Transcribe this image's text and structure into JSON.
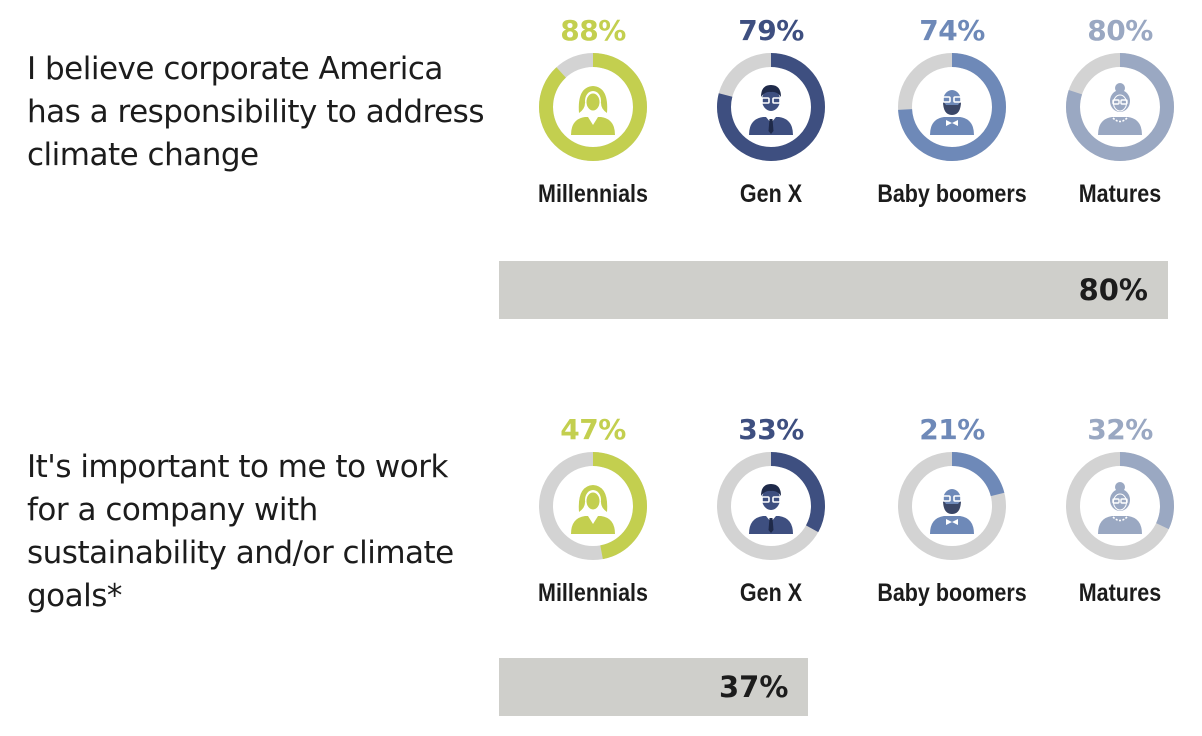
{
  "chart_data": [
    {
      "type": "donut",
      "question": "I believe corporate America has a responsibility to address climate change",
      "categories": [
        "Millennials",
        "Gen X",
        "Baby boomers",
        "Matures"
      ],
      "values": [
        88,
        79,
        74,
        80
      ],
      "value_labels": [
        "88%",
        "79%",
        "74%",
        "80%"
      ],
      "colors": [
        "#c3cf4f",
        "#3e4f80",
        "#6e89b8",
        "#9aa8c2"
      ],
      "icons": [
        "female-avatar-icon",
        "male-glasses-avatar-icon",
        "bearded-man-avatar-icon",
        "older-woman-avatar-icon"
      ],
      "total": {
        "value": 80,
        "label": "80%"
      }
    },
    {
      "type": "donut",
      "question": "It's important to me to work for a company with sustainability and/or climate goals*",
      "categories": [
        "Millennials",
        "Gen X",
        "Baby boomers",
        "Matures"
      ],
      "values": [
        47,
        33,
        21,
        32
      ],
      "value_labels": [
        "47%",
        "33%",
        "21%",
        "32%"
      ],
      "colors": [
        "#c3cf4f",
        "#3e4f80",
        "#6e89b8",
        "#9aa8c2"
      ],
      "icons": [
        "female-avatar-icon",
        "male-glasses-avatar-icon",
        "bearded-man-avatar-icon",
        "older-woman-avatar-icon"
      ],
      "total": {
        "value": 37,
        "label": "37%"
      }
    }
  ],
  "colors": {
    "track": "#d3d3d3",
    "total_bar": "#cfcfcb",
    "text": "#1c1c1c"
  }
}
